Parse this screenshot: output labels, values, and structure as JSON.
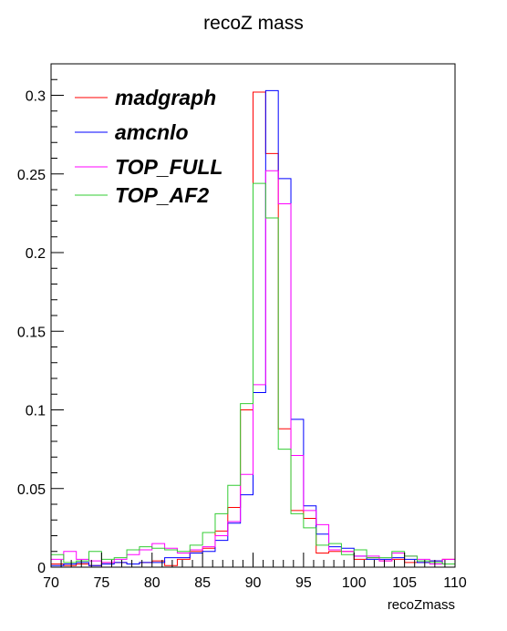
{
  "chart_data": {
    "type": "line",
    "title": "recoZ mass",
    "xlabel": "recoZmass",
    "ylabel": "",
    "xlim": [
      70,
      110
    ],
    "ylim": [
      0,
      0.32
    ],
    "grid": false,
    "legend_position": "top-left",
    "x_ticks": [
      70,
      75,
      80,
      85,
      90,
      95,
      100,
      105,
      110
    ],
    "x_tick_labels": [
      "70",
      "75",
      "80",
      "85",
      "90",
      "95",
      "100",
      "105",
      "110"
    ],
    "y_ticks": [
      0,
      0.05,
      0.1,
      0.15,
      0.2,
      0.25,
      0.3
    ],
    "y_tick_labels": [
      "0",
      "0.05",
      "0.1",
      "0.15",
      "0.2",
      "0.25",
      "0.3"
    ],
    "bin_edges": [
      70,
      71.25,
      72.5,
      73.75,
      75,
      76.25,
      77.5,
      78.75,
      80,
      81.25,
      82.5,
      83.75,
      85,
      86.25,
      87.5,
      88.75,
      90,
      91.25,
      92.5,
      93.75,
      95,
      96.25,
      97.5,
      98.75,
      100,
      101.25,
      102.5,
      103.75,
      105,
      106.25,
      107.5,
      108.75,
      110
    ],
    "series": [
      {
        "name": "madgraph",
        "color": "#ff0000",
        "values": [
          0.002,
          0.001,
          0.002,
          0.001,
          0.003,
          0.003,
          0.002,
          0.003,
          0.004,
          0.001,
          0.005,
          0.01,
          0.012,
          0.023,
          0.038,
          0.1,
          0.302,
          0.263,
          0.088,
          0.036,
          0.031,
          0.009,
          0.01,
          0.01,
          0.005,
          0.006,
          0.004,
          0.005,
          0.003,
          0.003,
          0.004,
          0.005
        ]
      },
      {
        "name": "amcnlo",
        "color": "#0000ff",
        "values": [
          0.001,
          0.002,
          0.003,
          0.001,
          0.002,
          0.003,
          0.002,
          0.003,
          0.003,
          0.006,
          0.006,
          0.009,
          0.01,
          0.017,
          0.028,
          0.046,
          0.111,
          0.303,
          0.247,
          0.094,
          0.039,
          0.021,
          0.013,
          0.012,
          0.007,
          0.005,
          0.005,
          0.006,
          0.005,
          0.003,
          0.004,
          0.002
        ]
      },
      {
        "name": "TOP_FULL",
        "color": "#ff00ff",
        "values": [
          0.005,
          0.01,
          0.005,
          0.004,
          0.003,
          0.005,
          0.008,
          0.011,
          0.015,
          0.012,
          0.009,
          0.011,
          0.013,
          0.02,
          0.029,
          0.059,
          0.116,
          0.252,
          0.231,
          0.071,
          0.036,
          0.027,
          0.011,
          0.01,
          0.007,
          0.007,
          0.004,
          0.009,
          0.007,
          0.005,
          0.002,
          0.005
        ]
      },
      {
        "name": "TOP_AF2",
        "color": "#33cc33",
        "values": [
          0.008,
          0.003,
          0.004,
          0.01,
          0.005,
          0.006,
          0.011,
          0.013,
          0.012,
          0.011,
          0.01,
          0.014,
          0.022,
          0.034,
          0.052,
          0.104,
          0.244,
          0.222,
          0.075,
          0.034,
          0.025,
          0.014,
          0.015,
          0.008,
          0.011,
          0.006,
          0.006,
          0.01,
          0.007,
          0.004,
          0.003,
          0.002
        ]
      }
    ]
  }
}
